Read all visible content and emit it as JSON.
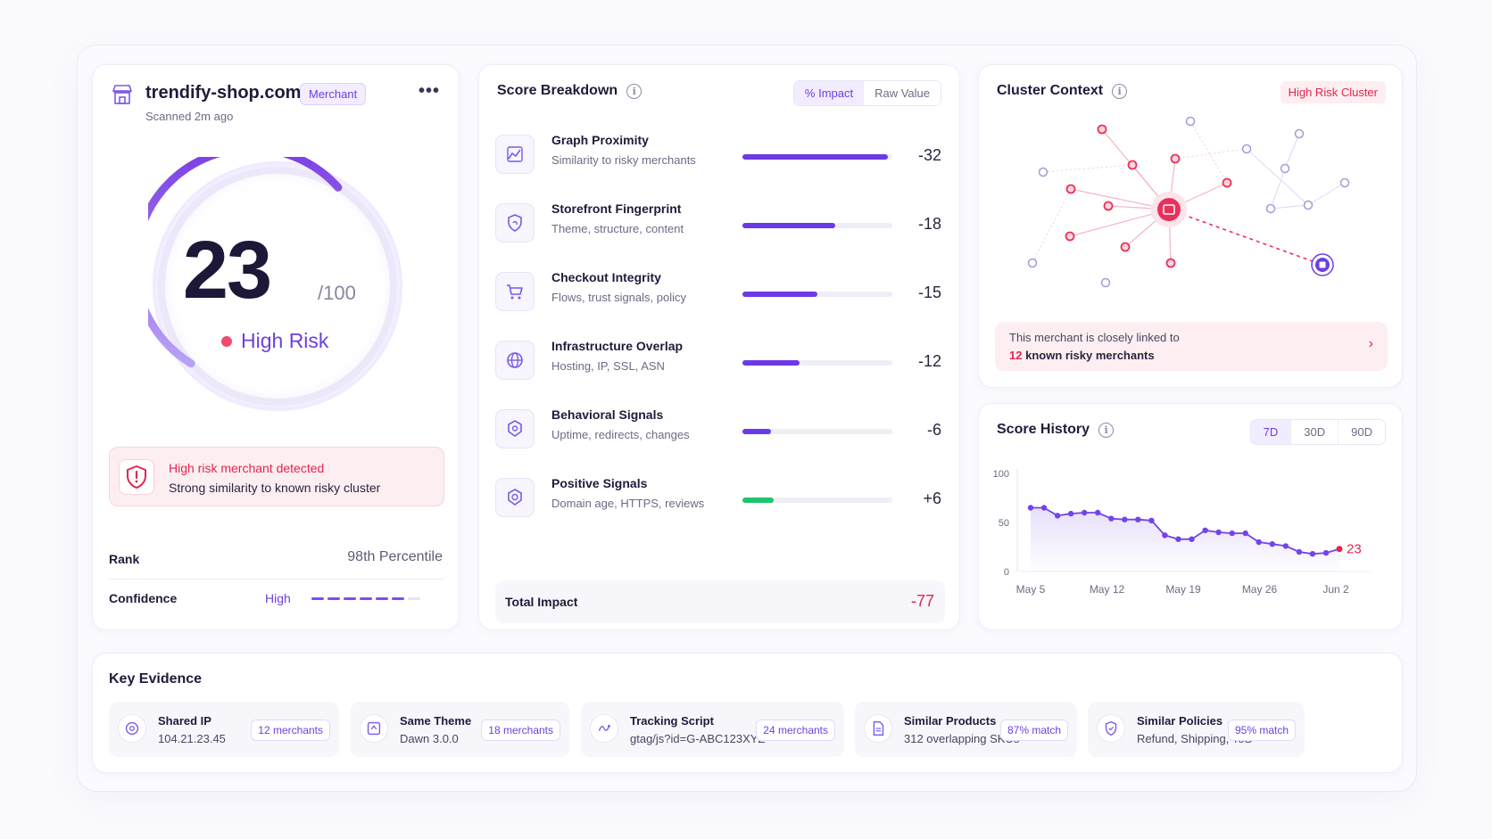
{
  "merchant": {
    "domain": "trendify-shop.com",
    "badge": "Merchant",
    "more": "•••",
    "scanned": "Scanned 2m ago",
    "score": "23",
    "score_max": "/100",
    "score_fraction": 0.77,
    "risk_label": "High Risk",
    "alert_title": "High risk merchant detected",
    "alert_sub": "Strong similarity to known risky cluster",
    "rank_label": "Rank",
    "rank_value": "98th Percentile",
    "confidence_label": "Confidence",
    "confidence_value": "High",
    "confidence_level": 0.86
  },
  "breakdown": {
    "title": "Score Breakdown",
    "toggle": [
      "% Impact",
      "Raw Value"
    ],
    "factors": [
      {
        "name": "Graph Proximity",
        "desc": "Similarity to risky merchants",
        "value": "-32",
        "fraction": 0.97,
        "icon": "graph-icon"
      },
      {
        "name": "Storefront Fingerprint",
        "desc": "Theme, structure, content",
        "value": "-18",
        "fraction": 0.62,
        "icon": "shield-fingerprint-icon"
      },
      {
        "name": "Checkout Integrity",
        "desc": "Flows, trust signals, policy",
        "value": "-15",
        "fraction": 0.5,
        "icon": "cart-icon"
      },
      {
        "name": "Infrastructure Overlap",
        "desc": "Hosting, IP, SSL, ASN",
        "value": "-12",
        "fraction": 0.38,
        "icon": "globe-icon"
      },
      {
        "name": "Behavioral Signals",
        "desc": "Uptime, redirects, changes",
        "value": "-6",
        "fraction": 0.19,
        "icon": "behavior-icon"
      },
      {
        "name": "Positive Signals",
        "desc": "Domain age, HTTPS, reviews",
        "value": "+6",
        "fraction": 0.21,
        "icon": "badge-check-icon",
        "positive": true
      }
    ],
    "total_label": "Total Impact",
    "total_value": "-77"
  },
  "cluster": {
    "title": "Cluster Context",
    "badge": "High Risk Cluster",
    "note_line1": "This merchant is closely linked to",
    "note_count": "12",
    "note_rest": "known risky merchants",
    "colors": {
      "risky": "#e8325a",
      "neutral": "#a59bd6",
      "target": "#6d3fe0"
    }
  },
  "history": {
    "title": "Score History",
    "ranges": [
      "7D",
      "30D",
      "90D"
    ],
    "active_range": "7D",
    "chart_data": {
      "type": "line",
      "y_ticks": [
        "100",
        "50",
        "0"
      ],
      "ylim": [
        0,
        100
      ],
      "x_labels": [
        "May 5",
        "May 12",
        "May 19",
        "May 26",
        "Jun 2"
      ],
      "values": [
        65,
        65,
        57,
        59,
        60,
        60,
        54,
        53,
        53,
        52,
        37,
        33,
        33,
        42,
        40,
        39,
        39,
        30,
        28,
        26,
        20,
        18,
        19,
        23
      ],
      "last_label": "23"
    }
  },
  "evidence": {
    "title": "Key Evidence",
    "items": [
      {
        "name": "Shared IP",
        "value": "104.21.23.45",
        "badge": "12 merchants",
        "icon": "network-icon"
      },
      {
        "name": "Same Theme",
        "value": "Dawn 3.0.0",
        "badge": "18 merchants",
        "icon": "theme-icon"
      },
      {
        "name": "Tracking Script",
        "value": "gtag/js?id=G-ABC123XYZ",
        "badge": "24 merchants",
        "icon": "script-icon"
      },
      {
        "name": "Similar Products",
        "value": "312 overlapping SKUs",
        "badge": "87% match",
        "icon": "document-icon"
      },
      {
        "name": "Similar Policies",
        "value": "Refund, Shipping, ToS",
        "badge": "95% match",
        "icon": "policy-shield-icon"
      }
    ]
  }
}
